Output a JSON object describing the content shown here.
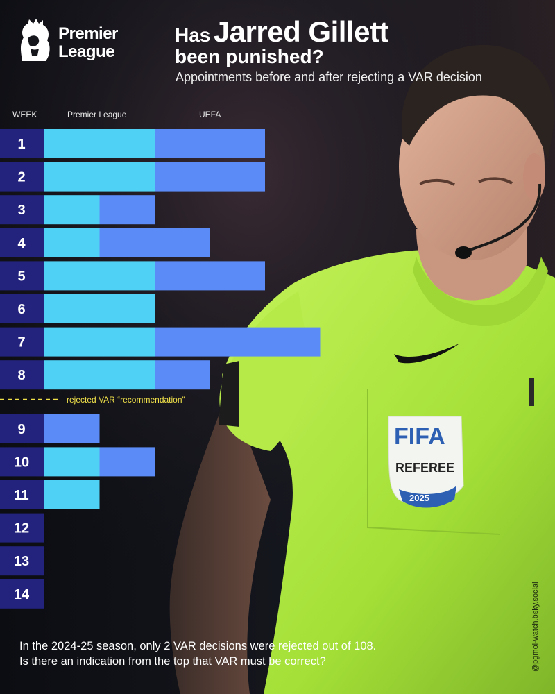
{
  "brand": {
    "line1": "Premier",
    "line2": "League"
  },
  "title": {
    "prefix": "Has",
    "name": "Jarred Gillett",
    "line2": "been punished?"
  },
  "subtitle": "Appointments before and after rejecting a VAR decision",
  "headers": {
    "week": "WEEK",
    "premier_league": "Premier League",
    "uefa": "UEFA"
  },
  "rejection_note": "rejected VAR “recommendation”",
  "footer": {
    "line1": "In the 2024-25 season, only 2 VAR decisions were rejected out of 108.",
    "line2_pre": "Is there an indication from the top that VAR ",
    "line2_emph": "must",
    "line2_post": " be correct?"
  },
  "credit": "@pgmol-watch.bsky.social",
  "colors": {
    "premier_league": "#4fd1f5",
    "uefa": "#5b8bf7",
    "week_box": "#23237d",
    "rejection_line": "#f2e24a",
    "background": "#14161c",
    "kit": "#a9e63c"
  },
  "chart_data": {
    "type": "bar",
    "orientation": "horizontal-stacked",
    "categories": [
      "1",
      "2",
      "3",
      "4",
      "5",
      "6",
      "7",
      "8",
      "9",
      "10",
      "11",
      "12",
      "13",
      "14"
    ],
    "series": [
      {
        "name": "Premier League",
        "values": [
          2,
          2,
          1,
          1,
          2,
          2,
          2,
          2,
          0,
          1,
          1,
          0,
          0,
          0
        ]
      },
      {
        "name": "UEFA",
        "values": [
          2,
          2,
          1,
          2,
          2,
          0,
          3,
          1,
          1,
          1,
          0,
          0,
          0,
          0
        ]
      }
    ],
    "annotation": {
      "after_category": "8",
      "text": "rejected VAR “recommendation”"
    },
    "xlabel": "",
    "ylabel": "WEEK"
  }
}
